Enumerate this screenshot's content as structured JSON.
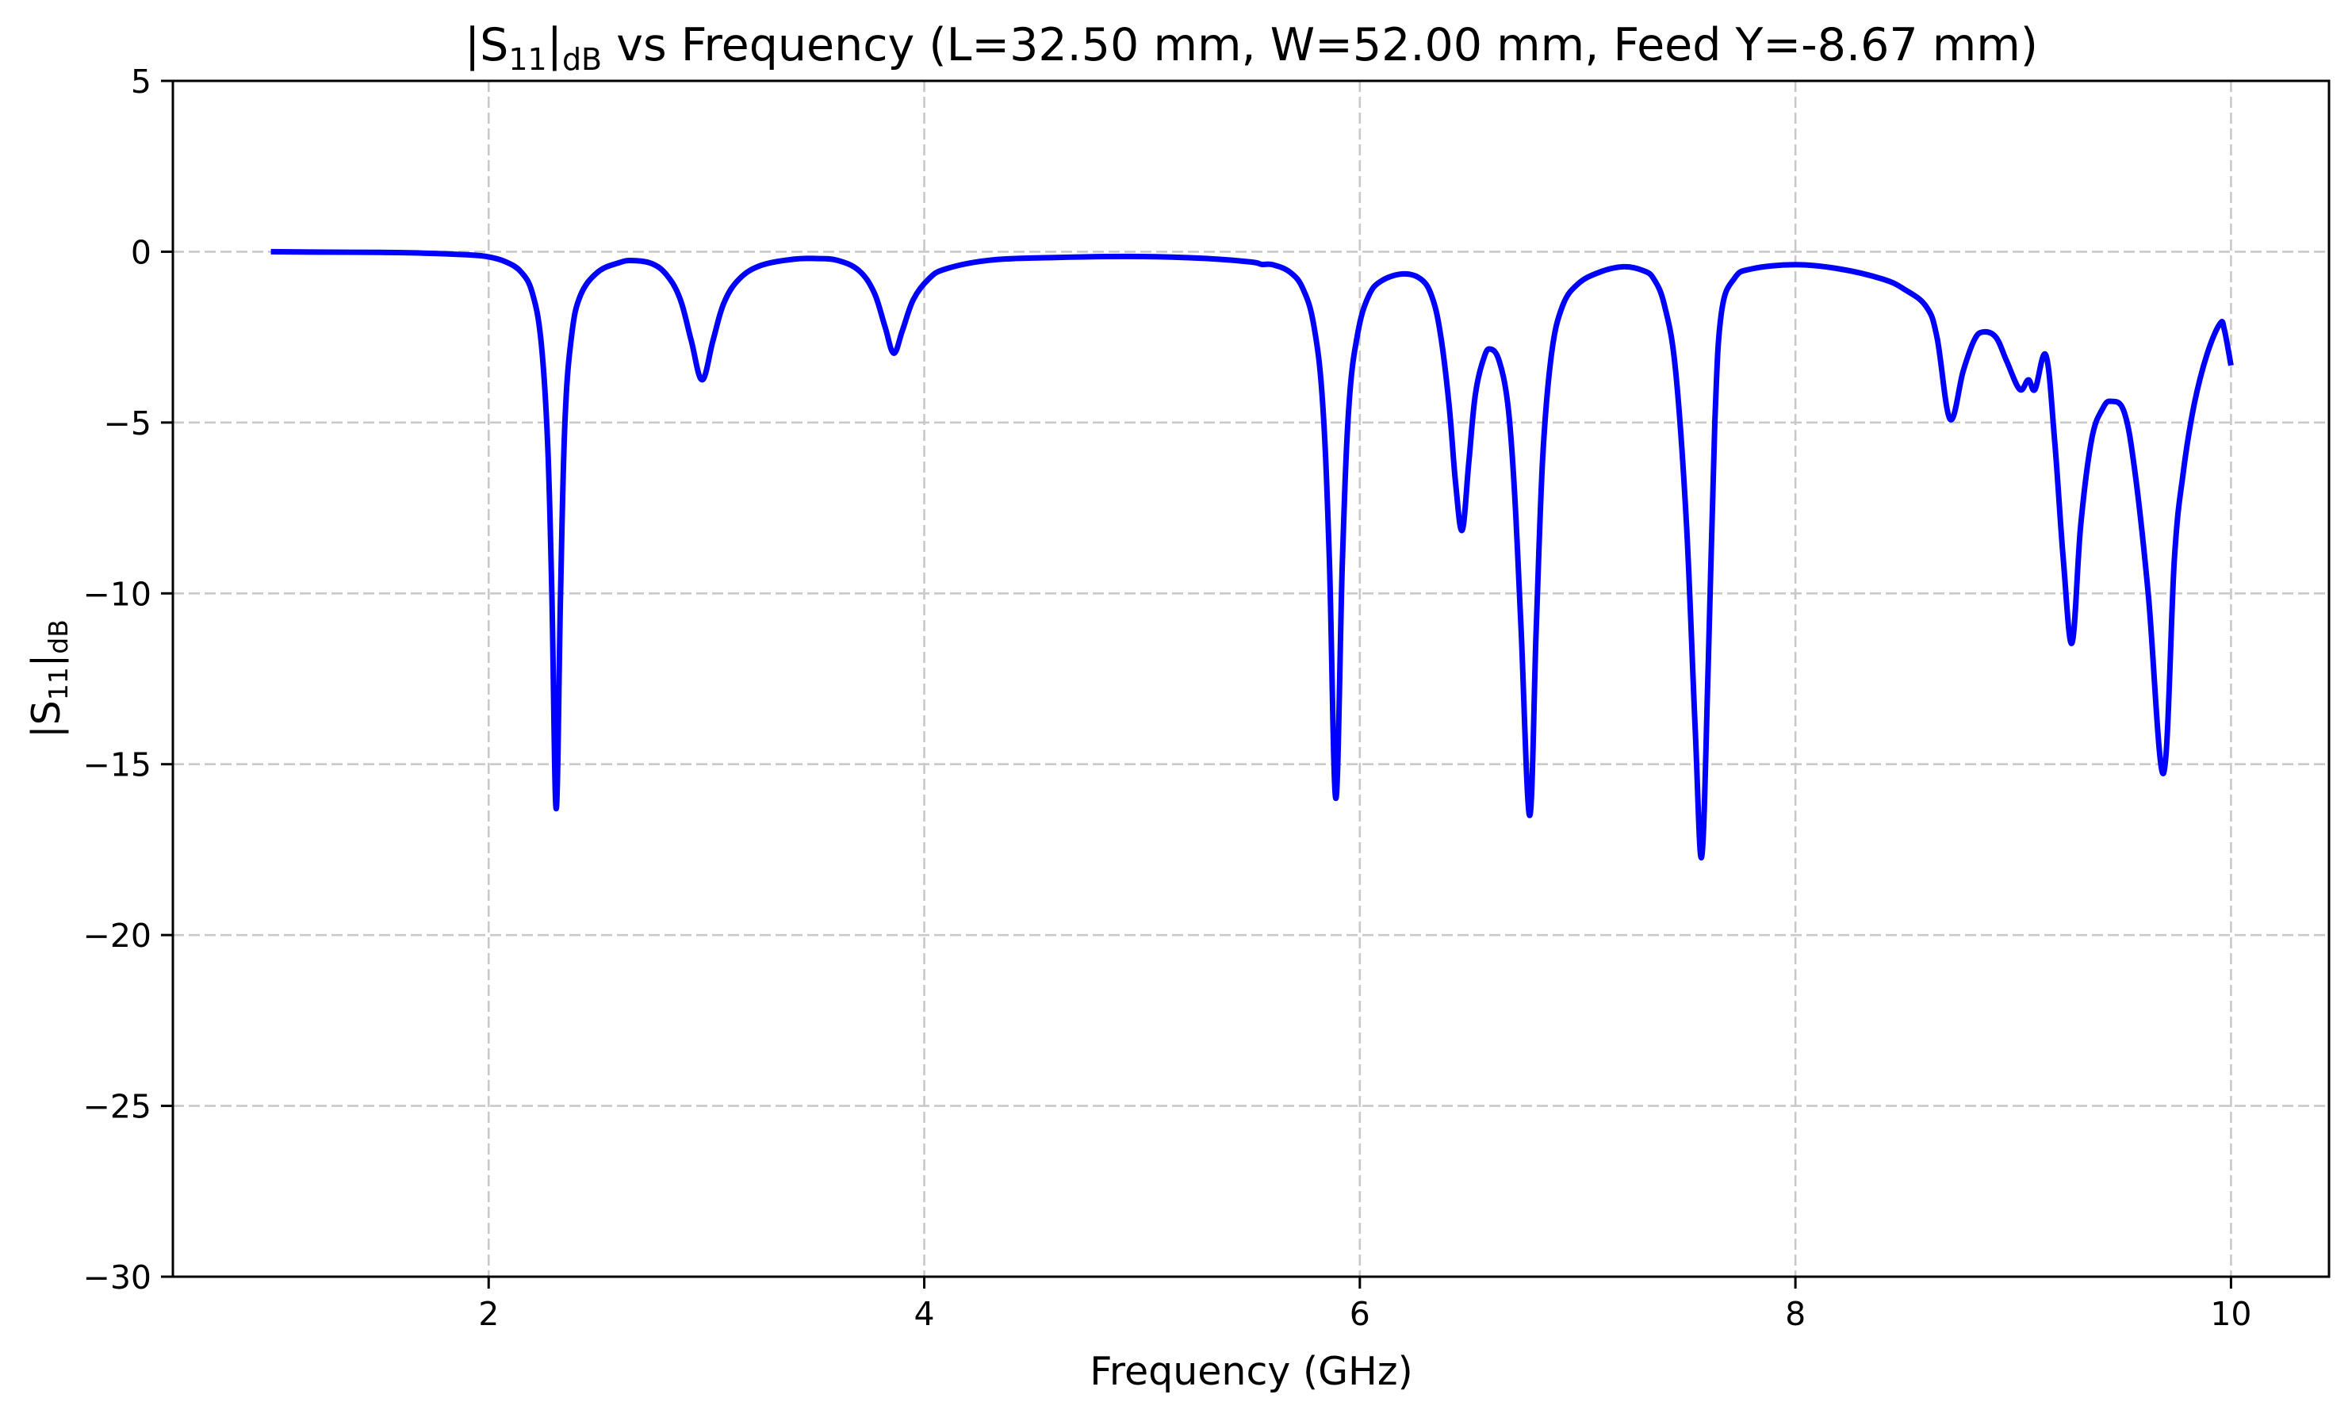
{
  "chart_data": {
    "type": "line",
    "title": "|S11|dB vs Frequency (L=32.50 mm, W=52.00 mm, Feed Y=-8.67 mm)",
    "title_parts": {
      "prefix": "|S",
      "subscript": "11",
      "bar": "|",
      "db_sub": "dB",
      "rest": " vs Frequency (L=32.50 mm, W=52.00 mm, Feed Y=-8.67 mm)"
    },
    "xlabel": "Frequency (GHz)",
    "ylabel": "|S11|dB",
    "ylabel_parts": {
      "prefix": "|S",
      "subscript": "11",
      "bar": "|",
      "db_sub": "dB"
    },
    "xlim": [
      0.55,
      10.45
    ],
    "ylim": [
      -30,
      5
    ],
    "xticks": [
      2,
      4,
      6,
      8,
      10
    ],
    "xtick_labels": [
      "2",
      "4",
      "6",
      "8",
      "10"
    ],
    "yticks": [
      5,
      0,
      -5,
      -10,
      -15,
      -20,
      -25,
      -30
    ],
    "ytick_labels": [
      "5",
      "0",
      "−5",
      "−10",
      "−15",
      "−20",
      "−25",
      "−30"
    ],
    "grid": true,
    "grid_style": "dashed",
    "legend": null,
    "line_color": "#0000ff",
    "series": [
      {
        "name": "|S11| (dB)",
        "x": [
          1.0,
          1.2,
          1.5,
          1.7,
          1.9,
          2.0,
          2.08,
          2.15,
          2.2,
          2.24,
          2.27,
          2.29,
          2.31,
          2.33,
          2.35,
          2.38,
          2.42,
          2.5,
          2.6,
          2.66,
          2.75,
          2.82,
          2.88,
          2.93,
          2.98,
          3.03,
          3.08,
          3.15,
          3.25,
          3.4,
          3.5,
          3.6,
          3.7,
          3.77,
          3.82,
          3.86,
          3.9,
          3.95,
          4.02,
          4.1,
          4.3,
          4.6,
          5.0,
          5.3,
          5.5,
          5.55,
          5.6,
          5.68,
          5.74,
          5.79,
          5.83,
          5.86,
          5.89,
          5.92,
          5.95,
          5.99,
          6.04,
          6.1,
          6.2,
          6.28,
          6.33,
          6.37,
          6.41,
          6.44,
          6.47,
          6.5,
          6.53,
          6.57,
          6.6,
          6.64,
          6.68,
          6.71,
          6.74,
          6.78,
          6.81,
          6.84,
          6.88,
          6.93,
          7.0,
          7.1,
          7.21,
          7.3,
          7.35,
          7.4,
          7.45,
          7.5,
          7.54,
          7.57,
          7.6,
          7.63,
          7.66,
          7.72,
          7.8,
          8.0,
          8.2,
          8.4,
          8.5,
          8.6,
          8.65,
          8.71,
          8.77,
          8.82,
          8.86,
          8.92,
          8.97,
          9.03,
          9.07,
          9.1,
          9.15,
          9.19,
          9.23,
          9.27,
          9.31,
          9.36,
          9.41,
          9.45,
          9.51,
          9.56,
          9.62,
          9.69,
          9.74,
          9.78,
          9.83,
          9.89,
          9.95,
          9.97,
          10.0
        ],
        "values": [
          0,
          -0.01,
          -0.02,
          -0.04,
          -0.09,
          -0.15,
          -0.3,
          -0.6,
          -1.2,
          -2.6,
          -5.5,
          -10,
          -16.3,
          -10,
          -5,
          -2.5,
          -1.3,
          -0.6,
          -0.32,
          -0.26,
          -0.35,
          -0.7,
          -1.4,
          -2.6,
          -3.75,
          -2.6,
          -1.5,
          -0.8,
          -0.4,
          -0.22,
          -0.2,
          -0.25,
          -0.55,
          -1.2,
          -2.2,
          -2.97,
          -2.3,
          -1.4,
          -0.8,
          -0.5,
          -0.25,
          -0.17,
          -0.14,
          -0.2,
          -0.3,
          -0.37,
          -0.38,
          -0.6,
          -1.1,
          -2.2,
          -4.5,
          -9,
          -16.0,
          -9,
          -4.5,
          -2.4,
          -1.3,
          -0.85,
          -0.65,
          -0.8,
          -1.3,
          -2.4,
          -4.5,
          -6.8,
          -8.15,
          -6.2,
          -4.2,
          -3.1,
          -2.85,
          -3.2,
          -4.5,
          -7,
          -11,
          -16.5,
          -11,
          -6,
          -3,
          -1.6,
          -0.95,
          -0.6,
          -0.44,
          -0.55,
          -0.8,
          -1.6,
          -3.5,
          -8,
          -14,
          -17.7,
          -12,
          -5,
          -1.8,
          -0.78,
          -0.5,
          -0.38,
          -0.5,
          -0.8,
          -1.1,
          -1.6,
          -2.5,
          -4.9,
          -3.5,
          -2.6,
          -2.35,
          -2.5,
          -3.2,
          -4.03,
          -3.75,
          -4.03,
          -3.03,
          -5.5,
          -9,
          -11.45,
          -8,
          -5.5,
          -4.6,
          -4.38,
          -4.7,
          -6.5,
          -10,
          -15.27,
          -9,
          -6.5,
          -4.5,
          -3,
          -2.1,
          -2.3,
          -3.33
        ]
      }
    ],
    "annotations": []
  }
}
